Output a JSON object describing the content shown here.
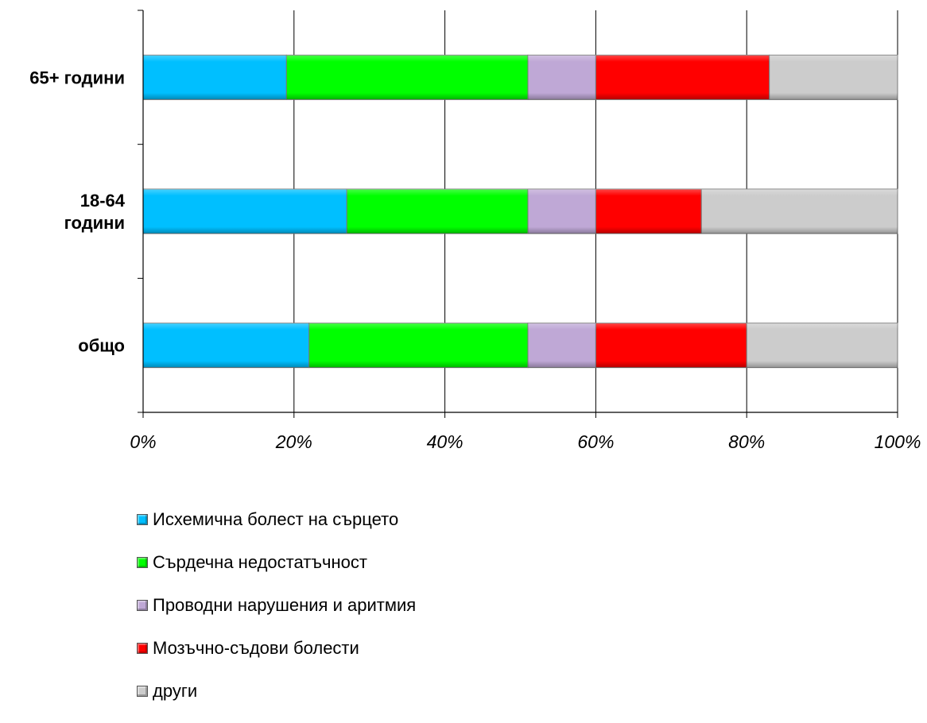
{
  "chart_data": {
    "type": "bar",
    "orientation": "horizontal",
    "stacked": "percent",
    "categories": [
      "65+ години",
      "18-64 години",
      "общо"
    ],
    "category_lines": [
      [
        "65+ години"
      ],
      [
        "18-64",
        "години"
      ],
      [
        "общо"
      ]
    ],
    "series": [
      {
        "name": "Исхемична болест на сърцето",
        "color": "#00BFFF",
        "values": [
          19,
          27,
          22
        ]
      },
      {
        "name": "Сърдечна недостатъчност",
        "color": "#00FF00",
        "values": [
          32,
          24,
          29
        ]
      },
      {
        "name": "Проводни нарушения и аритмия",
        "color": "#BFA8D6",
        "values": [
          9,
          9,
          9
        ]
      },
      {
        "name": "Мозъчно-съдови болести",
        "color": "#FF0000",
        "values": [
          23,
          14,
          20
        ]
      },
      {
        "name": "други",
        "color": "#CCCCCC",
        "values": [
          17,
          26,
          20
        ]
      }
    ],
    "xlim": [
      0,
      100
    ],
    "x_ticks": [
      "0%",
      "20%",
      "40%",
      "60%",
      "80%",
      "100%"
    ],
    "grid": true,
    "legend_position": "bottom"
  }
}
